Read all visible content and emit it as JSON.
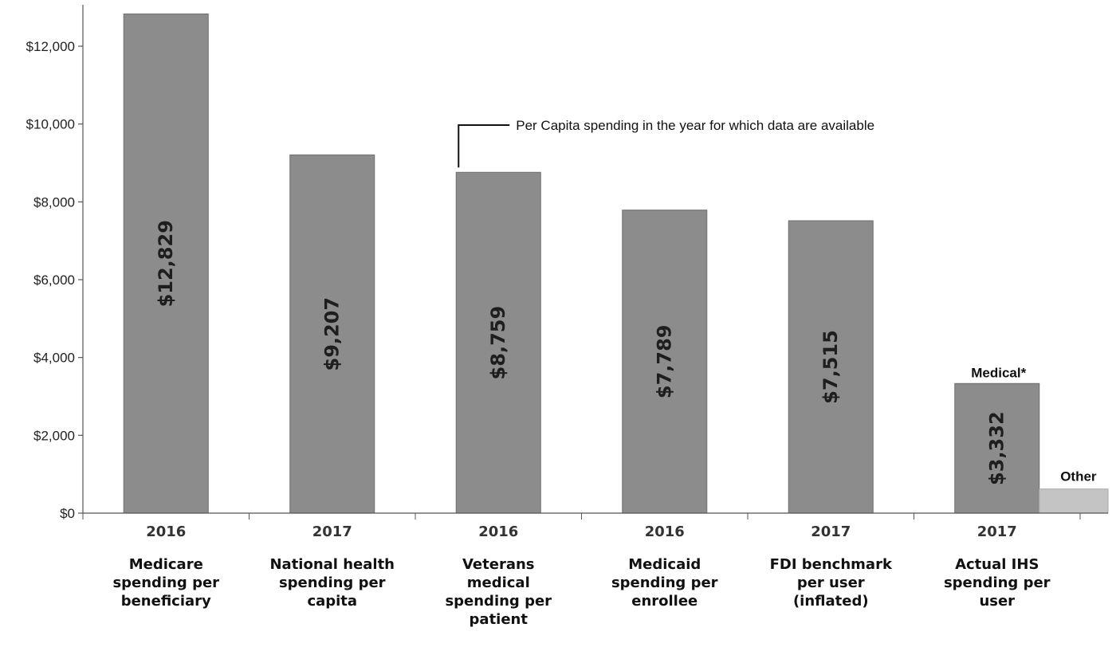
{
  "chart_data": {
    "type": "bar",
    "ylim": [
      0,
      13000
    ],
    "y_ticks": [
      0,
      2000,
      4000,
      6000,
      8000,
      10000,
      12000
    ],
    "y_tick_labels": [
      "$0",
      "$2,000",
      "$4,000",
      "$6,000",
      "$8,000",
      "$10,000",
      "$12,000"
    ],
    "grid": false,
    "categories": [
      {
        "year": "2016",
        "label": [
          "Medicare",
          "spending per",
          "beneficiary"
        ],
        "value": 12829,
        "value_label": "$12,829"
      },
      {
        "year": "2017",
        "label": [
          "National health",
          "spending per",
          "capita"
        ],
        "value": 9207,
        "value_label": "$9,207"
      },
      {
        "year": "2016",
        "label": [
          "Veterans",
          "medical",
          "spending per",
          "patient"
        ],
        "value": 8759,
        "value_label": "$8,759"
      },
      {
        "year": "2016",
        "label": [
          "Medicaid",
          "spending per",
          "enrollee"
        ],
        "value": 7789,
        "value_label": "$7,789"
      },
      {
        "year": "2017",
        "label": [
          "FDI benchmark",
          "per user",
          "(inflated)"
        ],
        "value": 7515,
        "value_label": "$7,515"
      },
      {
        "year": "2017",
        "label": [
          "Actual IHS",
          "spending per",
          "user"
        ],
        "value": 3332,
        "value_label": "$3,332",
        "segment_label": "Medical*"
      }
    ],
    "other_segment": {
      "label": "Other",
      "value": 620
    },
    "annotation": "Per Capita spending in the year for which data are available",
    "colors": {
      "bar": "#8c8c8c",
      "bar_edge": "#6e6e6e",
      "other": "#c4c4c4",
      "axis": "#555555"
    }
  }
}
